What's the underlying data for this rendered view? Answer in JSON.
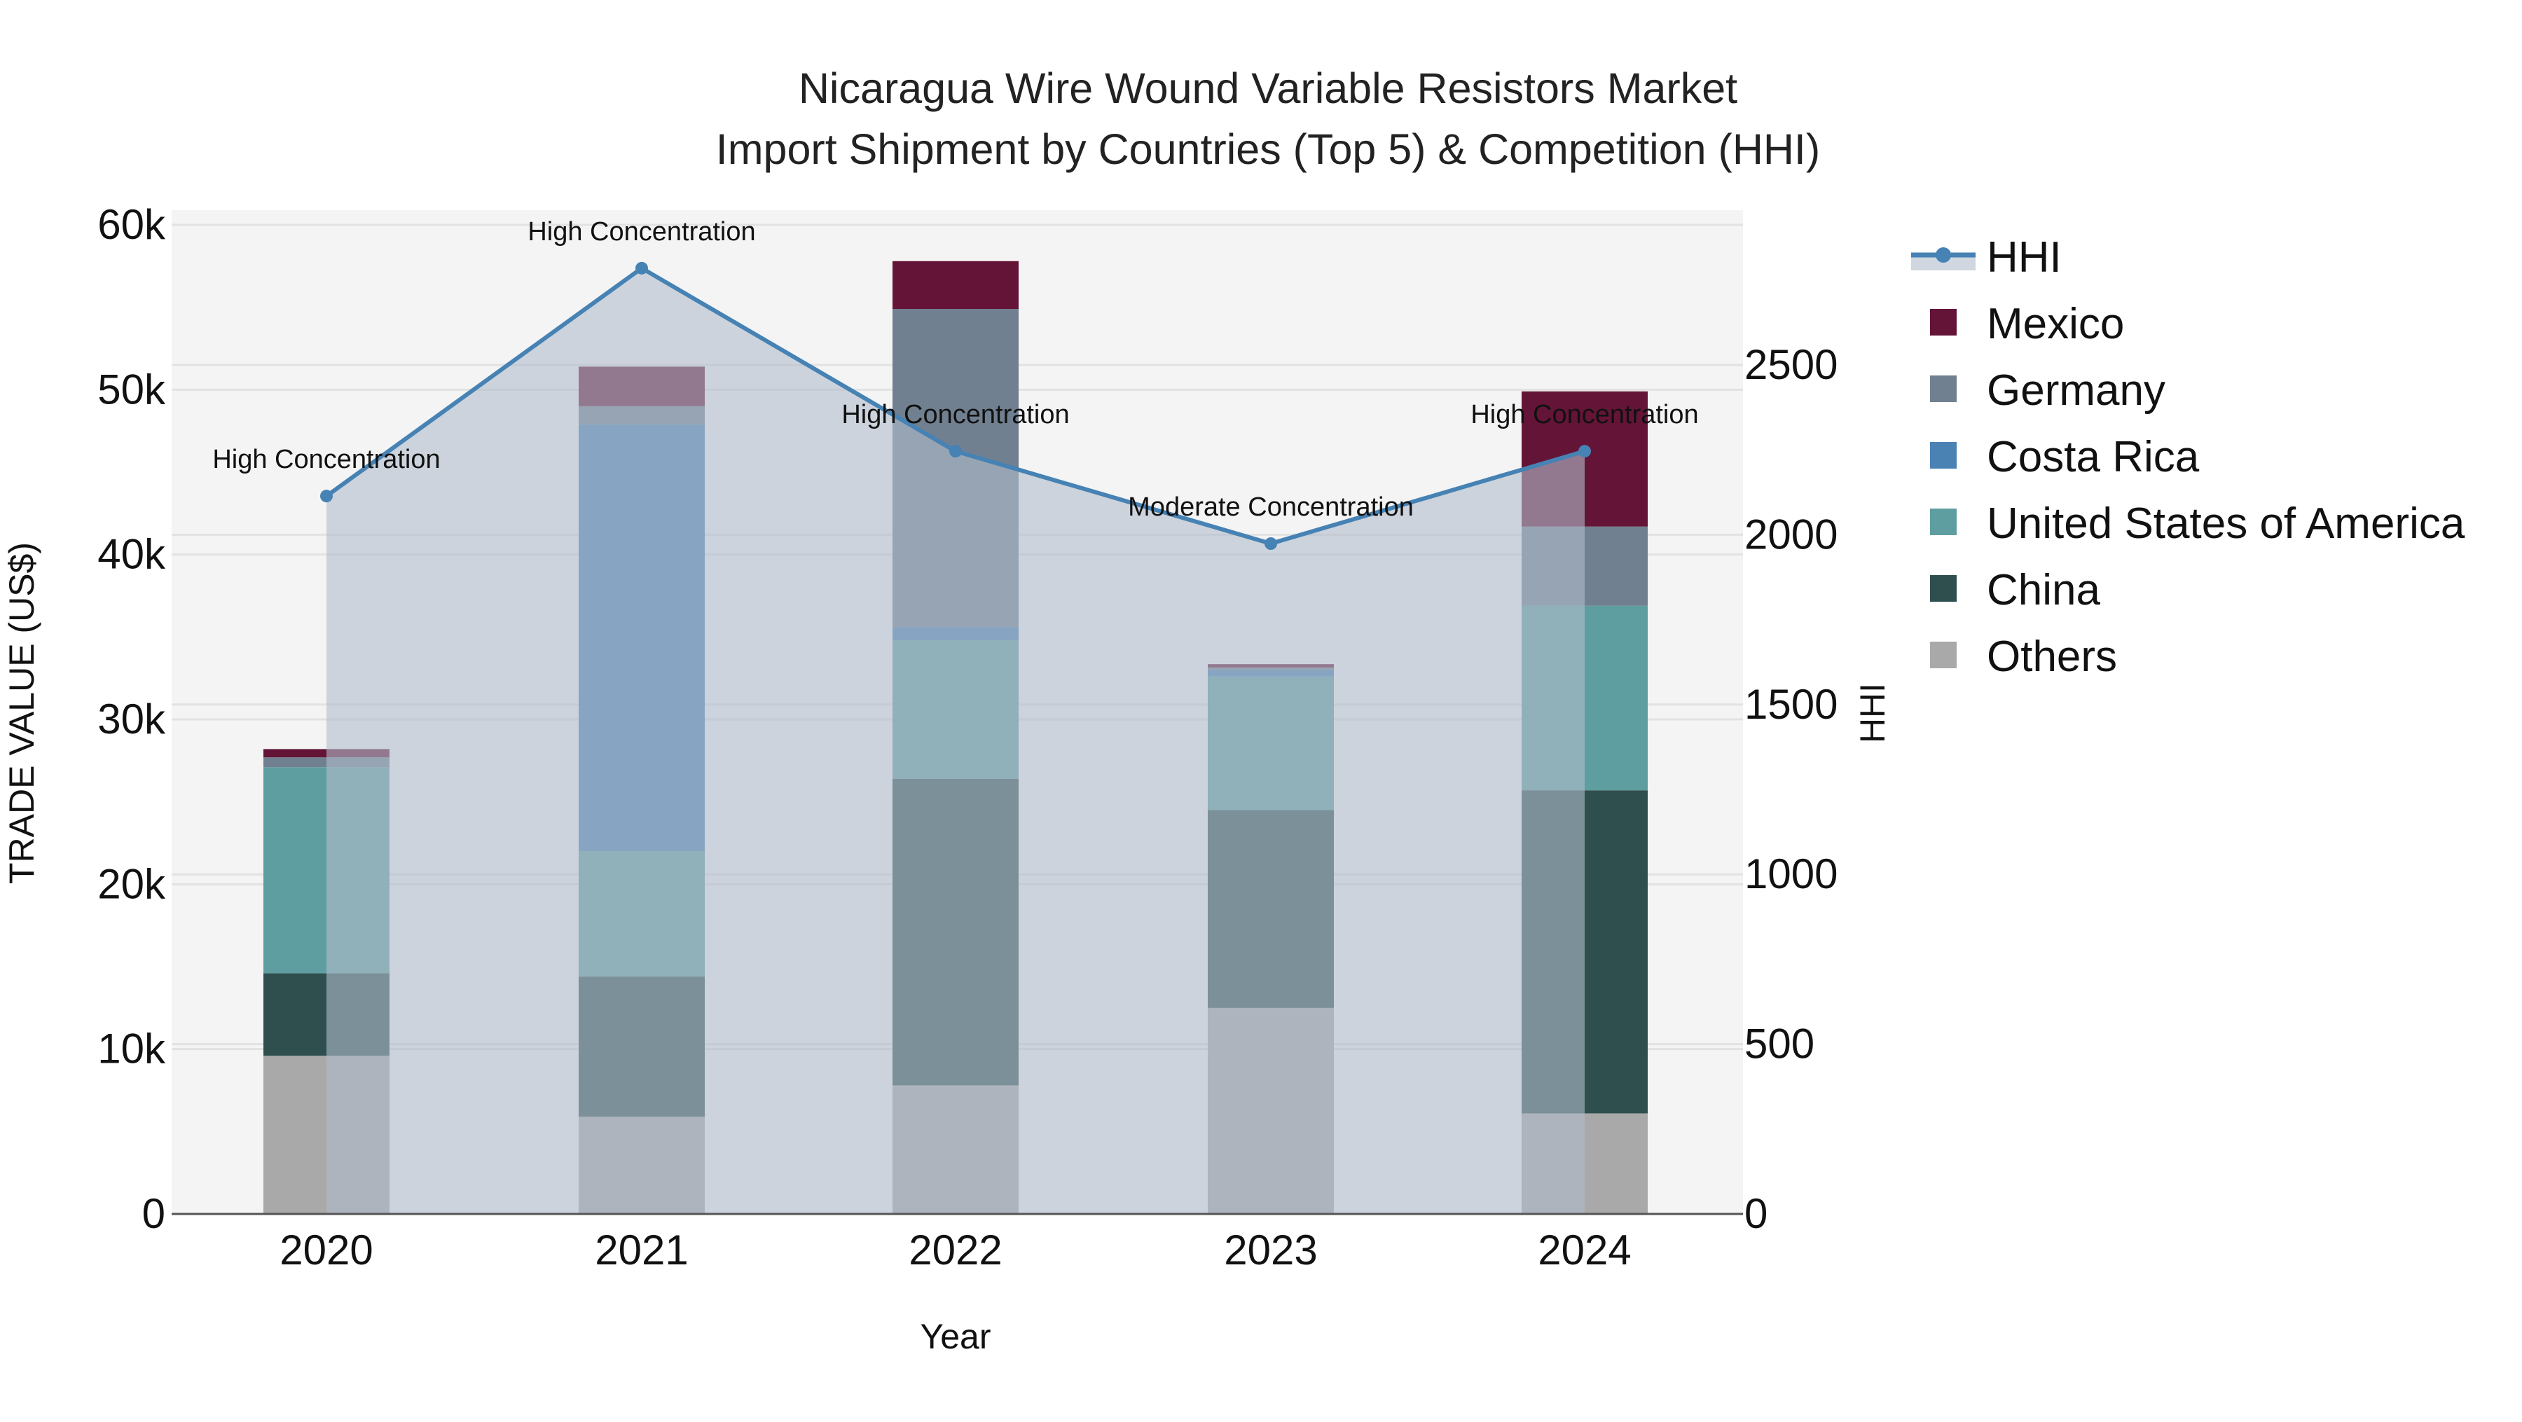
{
  "title": {
    "line1": "Nicaragua Wire Wound Variable Resistors Market",
    "line2": "Import Shipment by Countries (Top 5) & Competition (HHI)"
  },
  "axes": {
    "x_title": "Year",
    "y_left_title": "TRADE VALUE (US$)",
    "y_right_title": "HHI",
    "y_left_ticks": [
      "0",
      "10k",
      "20k",
      "30k",
      "40k",
      "50k",
      "60k"
    ],
    "y_right_ticks": [
      "0",
      "500",
      "1000",
      "1500",
      "2000",
      "2500"
    ]
  },
  "legend": {
    "items": [
      {
        "label": "HHI",
        "type": "line",
        "color": "#4682b4"
      },
      {
        "label": "Mexico",
        "type": "bar",
        "color": "#641537"
      },
      {
        "label": "Germany",
        "type": "bar",
        "color": "#708090"
      },
      {
        "label": "Costa Rica",
        "type": "bar",
        "color": "#4a82b4"
      },
      {
        "label": "United States of America",
        "type": "bar",
        "color": "#5f9ea0"
      },
      {
        "label": "China",
        "type": "bar",
        "color": "#2f4f4f"
      },
      {
        "label": "Others",
        "type": "bar",
        "color": "#a9a9a9"
      }
    ]
  },
  "colors": {
    "plot_bg": "#f4f4f4",
    "grid": "#e2e2e2",
    "hhi_line": "#4682b4",
    "hhi_fill": "rgba(176,188,204,0.6)",
    "axis_line": "#555555"
  },
  "chart_data": {
    "type": "bar",
    "stacked": true,
    "title": "Nicaragua Wire Wound Variable Resistors Market Import Shipment by Countries (Top 5) & Competition (HHI)",
    "xlabel": "Year",
    "ylabel": "TRADE VALUE (US$)",
    "y2label": "HHI",
    "ylim": [
      0,
      60000
    ],
    "y2lim": [
      0,
      2900
    ],
    "grid": true,
    "legend_position": "right",
    "categories": [
      "2020",
      "2021",
      "2022",
      "2023",
      "2024"
    ],
    "series": [
      {
        "name": "Others",
        "color": "#a9a9a9",
        "values": [
          9600,
          5900,
          7800,
          12500,
          6100
        ]
      },
      {
        "name": "China",
        "color": "#2f4f4f",
        "values": [
          5000,
          8500,
          18600,
          12000,
          19600
        ]
      },
      {
        "name": "United States of America",
        "color": "#5f9ea0",
        "values": [
          12500,
          7600,
          8400,
          8100,
          11200
        ]
      },
      {
        "name": "Costa Rica",
        "color": "#4a82b4",
        "values": [
          0,
          25900,
          800,
          400,
          0
        ]
      },
      {
        "name": "Germany",
        "color": "#708090",
        "values": [
          600,
          1100,
          19300,
          150,
          4800
        ]
      },
      {
        "name": "Mexico",
        "color": "#641537",
        "values": [
          500,
          2400,
          2900,
          200,
          8200
        ]
      }
    ],
    "line_series": {
      "name": "HHI",
      "axis": "right",
      "color": "#4682b4",
      "fill": "tozeroy",
      "values": [
        2114,
        2785,
        2246,
        1974,
        2246
      ],
      "annotations": [
        "High Concentration",
        "High Concentration",
        "High Concentration",
        "Moderate Concentration",
        "High Concentration"
      ]
    }
  }
}
